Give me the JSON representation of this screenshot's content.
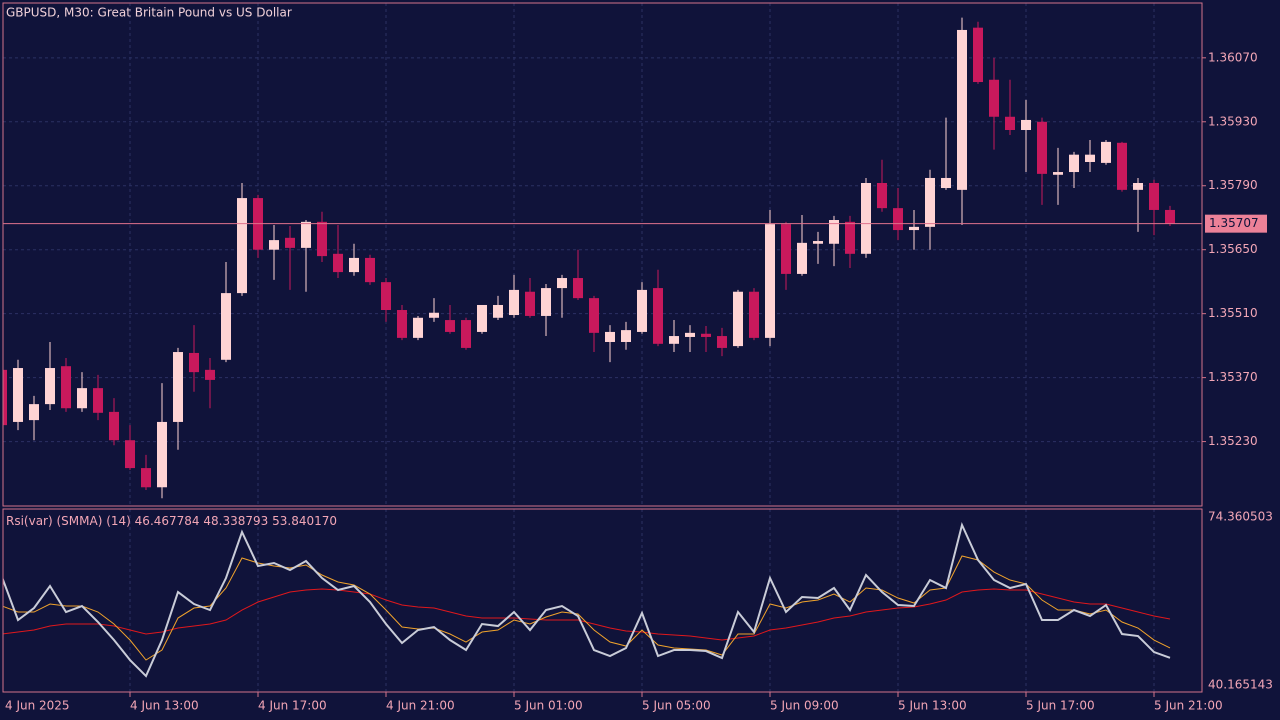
{
  "chart_data": [
    {
      "type": "candlestick",
      "title": "GBPUSD, M30:  Great Britain Pound vs US Dollar",
      "categories": [
        "4 Jun 2025",
        null,
        null,
        null,
        null,
        null,
        null,
        null,
        "4 Jun 13:00",
        null,
        null,
        null,
        null,
        null,
        null,
        null,
        "4 Jun 17:00",
        null,
        null,
        null,
        null,
        null,
        null,
        null,
        "4 Jun 21:00",
        null,
        null,
        null,
        null,
        null,
        null,
        null,
        "5 Jun 01:00",
        null,
        null,
        null,
        null,
        null,
        null,
        null,
        "5 Jun 05:00",
        null,
        null,
        null,
        null,
        null,
        null,
        null,
        "5 Jun 09:00",
        null,
        null,
        null,
        null,
        null,
        null,
        null,
        "5 Jun 13:00",
        null,
        null,
        null,
        null,
        null,
        null,
        null,
        "5 Jun 17:00",
        null,
        null,
        null,
        null,
        null,
        null,
        null,
        "5 Jun 21:00",
        null
      ],
      "open": [
        1.35387,
        1.35273,
        1.35277,
        1.35312,
        1.35395,
        1.35303,
        1.35347,
        1.35295,
        1.35233,
        1.35172,
        1.3513,
        1.35273,
        1.35424,
        1.35387,
        1.35409,
        1.35555,
        1.35763,
        1.3565,
        1.35676,
        1.35654,
        1.35711,
        1.35641,
        1.35601,
        1.35632,
        1.35579,
        1.35518,
        1.35457,
        1.35501,
        1.35496,
        1.35496,
        1.3547,
        1.35501,
        1.35507,
        1.35558,
        1.35505,
        1.35566,
        1.35588,
        1.35544,
        1.35448,
        1.35448,
        1.3547,
        1.35566,
        1.35444,
        1.35459,
        1.35466,
        1.35461,
        1.35439,
        1.35558,
        1.35457,
        1.35706,
        1.35597,
        1.35663,
        1.35663,
        1.35711,
        1.35641,
        1.35796,
        1.35741,
        1.35693,
        1.357,
        1.35785,
        1.35781,
        1.36136,
        1.36022,
        1.35941,
        1.35912,
        1.3593,
        1.35814,
        1.3582,
        1.35842,
        1.3584,
        1.35884,
        1.35781,
        1.35796,
        1.35737
      ],
      "high": [
        1.35398,
        1.35409,
        1.3533,
        1.35448,
        1.35413,
        1.35382,
        1.35376,
        1.35325,
        1.35266,
        1.35201,
        1.35358,
        1.35435,
        1.35485,
        1.35413,
        1.35623,
        1.35796,
        1.3577,
        1.35704,
        1.35702,
        1.35715,
        1.35733,
        1.35704,
        1.35663,
        1.35639,
        1.35588,
        1.35529,
        1.35505,
        1.35544,
        1.35529,
        1.35501,
        1.35529,
        1.35549,
        1.35595,
        1.35588,
        1.35575,
        1.35595,
        1.3565,
        1.35549,
        1.35485,
        1.35492,
        1.35579,
        1.35606,
        1.35496,
        1.35485,
        1.35483,
        1.35479,
        1.35562,
        1.35566,
        1.35737,
        1.35711,
        1.35726,
        1.35689,
        1.35724,
        1.35724,
        1.35807,
        1.35847,
        1.35785,
        1.35737,
        1.35825,
        1.35939,
        1.36158,
        1.36149,
        1.3607,
        1.36022,
        1.35978,
        1.35939,
        1.35873,
        1.35864,
        1.3589,
        1.3589,
        1.35886,
        1.35807,
        1.35803,
        1.35746
      ],
      "low": [
        1.3526,
        1.35255,
        1.35233,
        1.35299,
        1.35295,
        1.35295,
        1.35277,
        1.35222,
        1.35168,
        1.35124,
        1.35106,
        1.35212,
        1.35339,
        1.35303,
        1.35404,
        1.35549,
        1.35632,
        1.35584,
        1.35562,
        1.35558,
        1.35623,
        1.35588,
        1.35593,
        1.35573,
        1.35492,
        1.35452,
        1.35452,
        1.35492,
        1.35466,
        1.35431,
        1.35466,
        1.35496,
        1.35501,
        1.35501,
        1.35461,
        1.35501,
        1.3554,
        1.35426,
        1.35404,
        1.35431,
        1.35466,
        1.35439,
        1.35426,
        1.35426,
        1.35426,
        1.35417,
        1.35435,
        1.35452,
        1.35439,
        1.35562,
        1.35593,
        1.35619,
        1.35614,
        1.3561,
        1.35632,
        1.35733,
        1.35671,
        1.3565,
        1.3565,
        1.35781,
        1.35704,
        1.36013,
        1.35869,
        1.35901,
        1.3582,
        1.35748,
        1.35748,
        1.35785,
        1.3582,
        1.35836,
        1.35777,
        1.35689,
        1.35682,
        1.35702
      ],
      "close": [
        1.35266,
        1.35391,
        1.35312,
        1.35391,
        1.35303,
        1.35347,
        1.35293,
        1.35233,
        1.35172,
        1.3513,
        1.35273,
        1.35426,
        1.35382,
        1.35365,
        1.35555,
        1.35763,
        1.3565,
        1.35671,
        1.35654,
        1.35711,
        1.35636,
        1.35601,
        1.35632,
        1.35579,
        1.35518,
        1.35457,
        1.35501,
        1.35512,
        1.3547,
        1.35435,
        1.35529,
        1.35529,
        1.35562,
        1.35505,
        1.35566,
        1.35588,
        1.35544,
        1.35468,
        1.3547,
        1.35474,
        1.35562,
        1.35444,
        1.35461,
        1.35468,
        1.35459,
        1.35435,
        1.35558,
        1.35457,
        1.35706,
        1.35597,
        1.35665,
        1.35669,
        1.35715,
        1.35641,
        1.35796,
        1.35741,
        1.35693,
        1.357,
        1.35807,
        1.35807,
        1.36131,
        1.36017,
        1.35941,
        1.35912,
        1.35934,
        1.35816,
        1.3582,
        1.35858,
        1.35858,
        1.35886,
        1.35781,
        1.35796,
        1.35737,
        1.35707
      ],
      "up_color": "#ffd4d4",
      "down_color": "#c8195c",
      "ylim": [
        1.35089,
        1.3619
      ],
      "yticks": [
        {
          "value": 1.3607,
          "label": "1.36070"
        },
        {
          "value": 1.3593,
          "label": "1.35930"
        },
        {
          "value": 1.3579,
          "label": "1.35790"
        },
        {
          "value": 1.3565,
          "label": "1.35650"
        },
        {
          "value": 1.3551,
          "label": "1.35510"
        },
        {
          "value": 1.3537,
          "label": "1.35370"
        },
        {
          "value": 1.3523,
          "label": "1.35230"
        }
      ],
      "grid": true
    },
    {
      "type": "line",
      "title": "Rsi(var) (SMMA) (14)",
      "series": [
        {
          "color": "#c9ccd8",
          "values": [
            61.82,
            53.65,
            55.93,
            60.11,
            55.17,
            56.31,
            53.27,
            49.85,
            46.05,
            43.01,
            49.85,
            58.97,
            56.69,
            55.55,
            61.63,
            70.37,
            63.91,
            64.48,
            63.15,
            64.86,
            61.63,
            59.35,
            60.11,
            57.07,
            52.89,
            49.28,
            51.75,
            52.32,
            49.85,
            47.95,
            52.89,
            52.51,
            55.17,
            51.75,
            55.55,
            56.31,
            54.41,
            47.95,
            46.81,
            48.33,
            54.98,
            46.81,
            47.95,
            47.95,
            47.76,
            46.43,
            55.17,
            51.37,
            61.63,
            55.17,
            58.02,
            57.83,
            59.73,
            55.55,
            62.2,
            58.97,
            56.5,
            56.31,
            61.25,
            59.73,
            71.7,
            65.05,
            61.25,
            59.73,
            60.49,
            53.65,
            53.65,
            55.55,
            54.41,
            56.5,
            50.99,
            50.61,
            47.57,
            46.467784
          ]
        },
        {
          "color": "#f0a32c",
          "values": [
            56.31,
            55.17,
            55.17,
            56.69,
            56.31,
            56.31,
            55.17,
            52.89,
            49.85,
            46.05,
            47.95,
            54.03,
            55.93,
            56.31,
            59.73,
            65.43,
            64.48,
            63.91,
            63.53,
            64.1,
            62.2,
            60.87,
            60.3,
            58.59,
            55.55,
            52.32,
            51.94,
            52.13,
            50.99,
            49.47,
            51.37,
            51.75,
            53.65,
            52.89,
            54.22,
            55.17,
            54.79,
            51.75,
            49.47,
            48.71,
            51.75,
            48.9,
            48.33,
            48.14,
            47.95,
            47.0,
            50.99,
            50.99,
            56.69,
            55.93,
            57.07,
            57.45,
            58.59,
            57.07,
            59.73,
            59.35,
            57.83,
            56.88,
            59.35,
            59.73,
            65.81,
            65.05,
            62.77,
            61.25,
            60.49,
            57.45,
            55.55,
            55.55,
            54.79,
            55.55,
            53.27,
            52.13,
            49.85,
            48.338793
          ]
        },
        {
          "color": "#e0181c",
          "values": [
            50.99,
            51.37,
            51.75,
            52.51,
            52.89,
            52.89,
            52.89,
            52.51,
            51.75,
            50.99,
            51.37,
            52.13,
            52.51,
            52.89,
            53.65,
            55.55,
            57.07,
            58.02,
            58.97,
            59.35,
            59.54,
            59.35,
            58.97,
            58.59,
            57.45,
            56.5,
            56.12,
            55.93,
            55.17,
            54.41,
            54.03,
            54.03,
            54.03,
            53.84,
            53.65,
            53.65,
            53.65,
            52.89,
            52.13,
            51.56,
            51.37,
            50.99,
            50.8,
            50.61,
            50.23,
            49.85,
            50.23,
            50.61,
            51.75,
            52.13,
            52.7,
            53.27,
            54.03,
            54.41,
            55.17,
            55.55,
            55.93,
            56.12,
            56.69,
            57.45,
            58.97,
            59.35,
            59.54,
            59.35,
            59.35,
            58.59,
            57.83,
            57.07,
            56.69,
            56.69,
            55.93,
            55.17,
            54.41,
            53.84017
          ],
          "value_labels": [
            null,
            null,
            null,
            null,
            null,
            null,
            null,
            null,
            null,
            null,
            null,
            null,
            null,
            null,
            null,
            null,
            null,
            null,
            null,
            null,
            null,
            null,
            null,
            null,
            null,
            null,
            null,
            null,
            null,
            null,
            null,
            null,
            null,
            null,
            null,
            null,
            null,
            null,
            null,
            null,
            null,
            null,
            null,
            null,
            null,
            null,
            null,
            null,
            null,
            null,
            null,
            null,
            null,
            null,
            null,
            null,
            null,
            null,
            null,
            null,
            null,
            null,
            null,
            null,
            null,
            null,
            null,
            null,
            null,
            null,
            null,
            null,
            null,
            "53.840170"
          ]
        }
      ],
      "ylim": [
        40.165143,
        74.360503
      ]
    }
  ]
}
